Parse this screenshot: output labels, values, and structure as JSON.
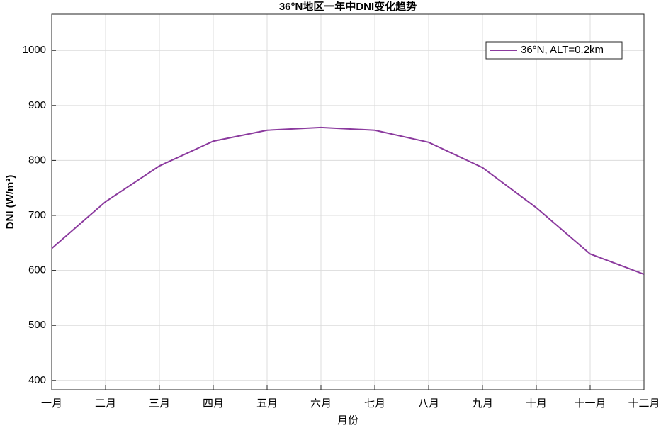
{
  "chart_data": {
    "type": "line",
    "title": "36°N地区一年中DNI变化趋势",
    "x_label": "月份",
    "y_label": "DNI (W/m²)",
    "categories": [
      "一月",
      "二月",
      "三月",
      "四月",
      "五月",
      "六月",
      "七月",
      "八月",
      "九月",
      "十月",
      "十一月",
      "十二月"
    ],
    "series": [
      {
        "name": "36°N, ALT=0.2km",
        "color": "#8b3a9e",
        "values": [
          640,
          725,
          790,
          835,
          855,
          860,
          855,
          833,
          787,
          714,
          630,
          593
        ]
      }
    ],
    "ylim": [
      383,
      1066
    ],
    "yticks": [
      400,
      500,
      600,
      700,
      800,
      900,
      1000
    ],
    "grid": true,
    "legend": "upper right"
  }
}
